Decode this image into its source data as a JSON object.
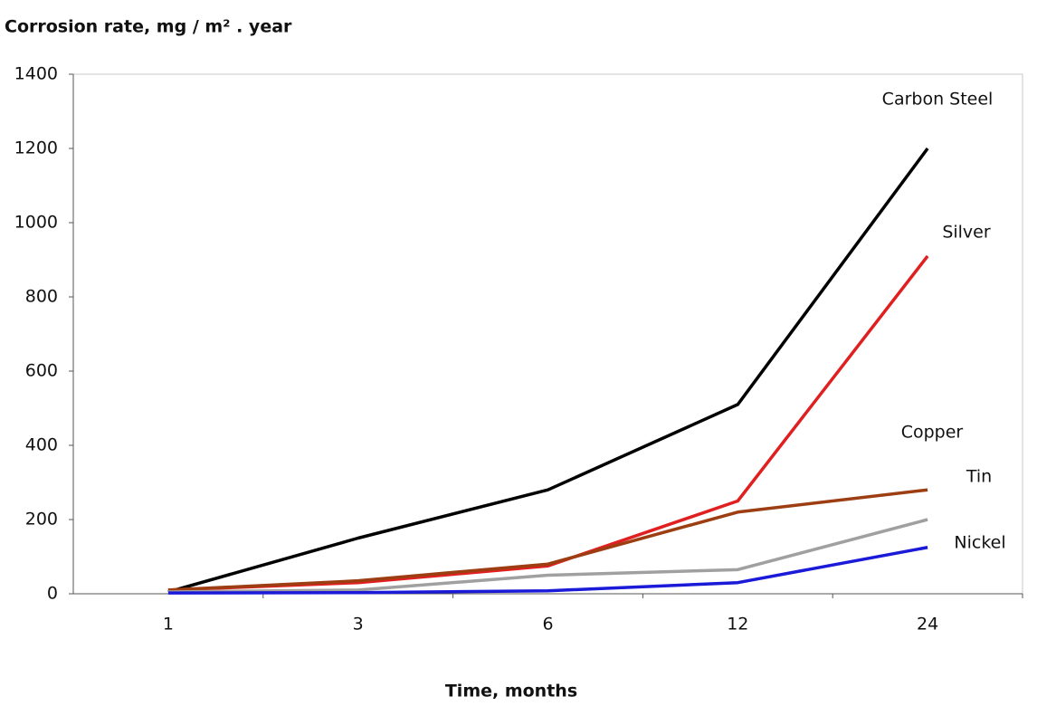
{
  "chart_data": {
    "type": "line",
    "title": "Corrosion rate, mg / m² . year",
    "x_label": "Time, months",
    "categories": [
      "1",
      "3",
      "6",
      "12",
      "24"
    ],
    "series": [
      {
        "name": "Carbon Steel",
        "color": "#000000",
        "values": [
          5,
          150,
          280,
          510,
          1200
        ]
      },
      {
        "name": "Silver",
        "color": "#e02020",
        "values": [
          10,
          30,
          75,
          250,
          910
        ]
      },
      {
        "name": "Copper",
        "color": "#9c3d12",
        "values": [
          10,
          35,
          80,
          220,
          280
        ]
      },
      {
        "name": "Tin",
        "color": "#a0a0a0",
        "values": [
          5,
          10,
          50,
          65,
          200
        ]
      },
      {
        "name": "Nickel",
        "color": "#1a1ad8",
        "values": [
          2,
          3,
          8,
          30,
          125
        ]
      }
    ],
    "ylim": [
      0,
      1400
    ],
    "yticks": [
      0,
      200,
      400,
      600,
      800,
      1000,
      1200,
      1400
    ],
    "grid": false
  }
}
